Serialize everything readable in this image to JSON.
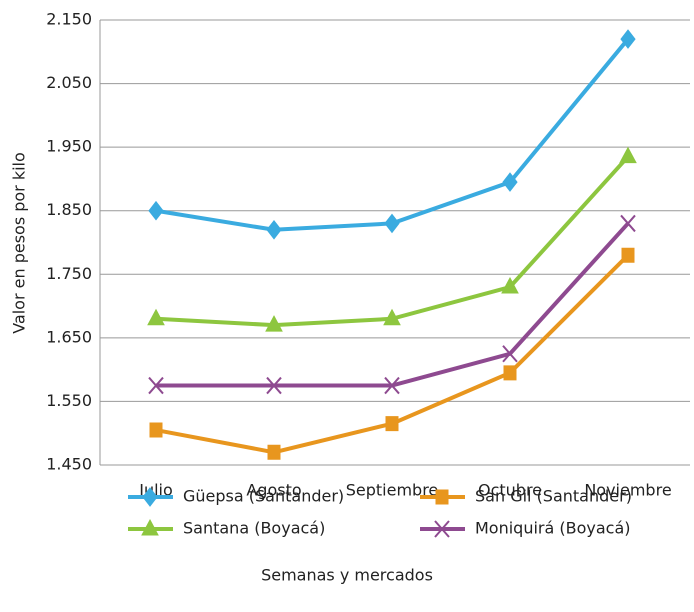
{
  "chart_data": {
    "type": "line",
    "y_label": "Valor en pesos por kilo",
    "x_label": "Semanas y mercados",
    "categories": [
      "Julio",
      "Agosto",
      "Septiembre",
      "Octubre",
      "Noviembre"
    ],
    "series": [
      {
        "name": "Güepsa (Santander)",
        "color": "#3aabe0",
        "marker": "diamond",
        "values": [
          1850,
          1820,
          1830,
          1895,
          2120
        ]
      },
      {
        "name": "San Gil (Santander)",
        "color": "#e8961e",
        "marker": "square",
        "values": [
          1505,
          1470,
          1515,
          1595,
          1780
        ]
      },
      {
        "name": "Santana (Boyacá)",
        "color": "#8dc63f",
        "marker": "triangle",
        "values": [
          1680,
          1670,
          1680,
          1730,
          1935
        ]
      },
      {
        "name": "Moniquirá (Boyacá)",
        "color": "#8e4a90",
        "marker": "x",
        "values": [
          1575,
          1575,
          1575,
          1625,
          1830
        ]
      }
    ],
    "ylim": [
      1450,
      2150
    ],
    "yticks": [
      {
        "value": 1450,
        "label": "1.450"
      },
      {
        "value": 1550,
        "label": "1.550"
      },
      {
        "value": 1650,
        "label": "1.650"
      },
      {
        "value": 1750,
        "label": "1.750"
      },
      {
        "value": 1850,
        "label": "1.850"
      },
      {
        "value": 1950,
        "label": "1.950"
      },
      {
        "value": 2050,
        "label": "2.050"
      },
      {
        "value": 2150,
        "label": "2.150"
      }
    ],
    "grid": true
  }
}
